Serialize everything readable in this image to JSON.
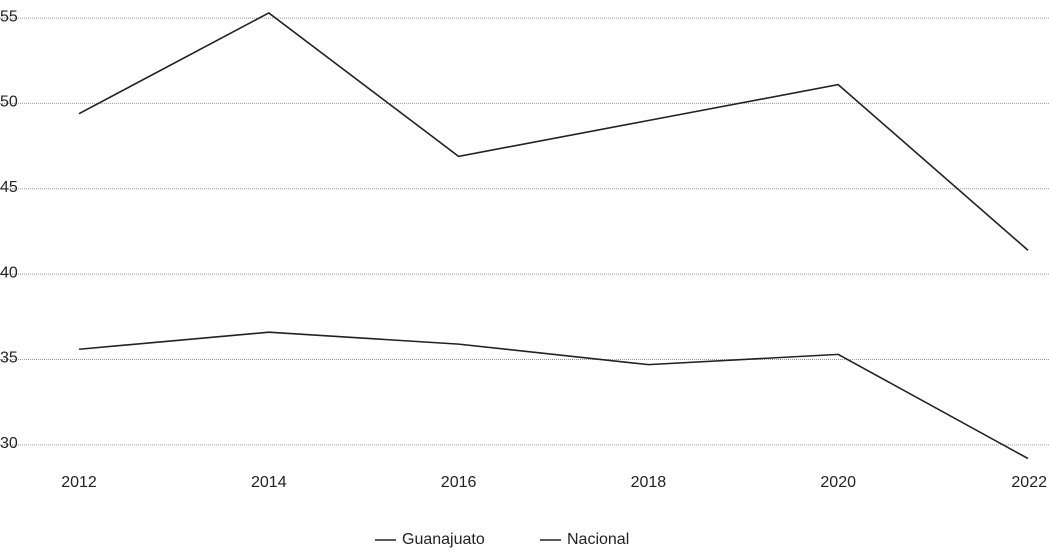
{
  "chart_data": {
    "type": "line",
    "x": [
      2012,
      2014,
      2016,
      2018,
      2020,
      2022
    ],
    "xlim": [
      2012,
      2022
    ],
    "xticks": [
      2012,
      2014,
      2016,
      2018,
      2020,
      2022
    ],
    "ylim": [
      28,
      56
    ],
    "yticks": [
      30,
      35,
      40,
      45,
      50,
      55
    ],
    "grid": true,
    "legend": "bottom",
    "series": [
      {
        "name": "Guanajuato",
        "color": "#222222",
        "values": [
          49.4,
          55.3,
          46.9,
          49.0,
          51.1,
          41.4
        ]
      },
      {
        "name": "Nacional",
        "color": "#222222",
        "values": [
          35.6,
          36.6,
          35.9,
          34.7,
          35.3,
          29.2
        ]
      }
    ]
  }
}
